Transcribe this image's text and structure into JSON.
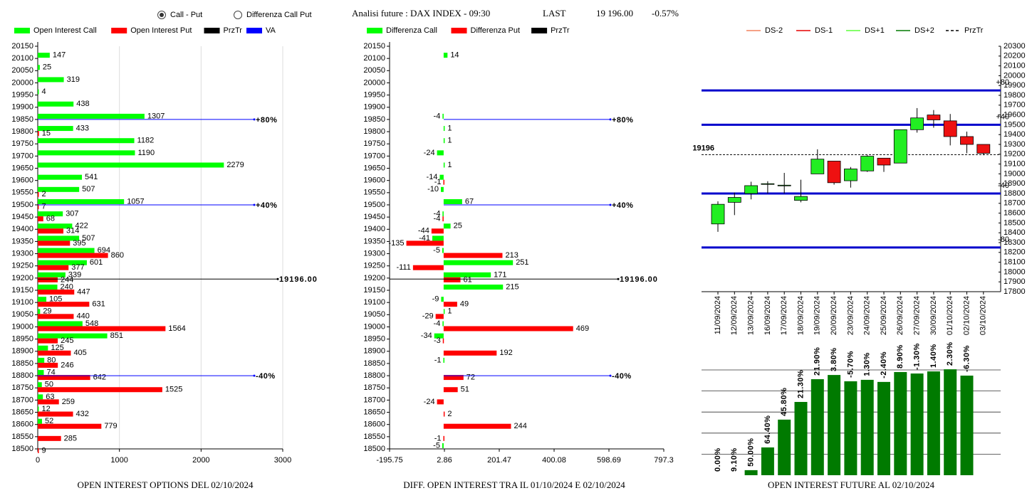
{
  "header": {
    "options": [
      {
        "label": "Call - Put",
        "selected": true
      },
      {
        "label": "Differenza Call Put",
        "selected": false
      }
    ],
    "title": "Analisi future : DAX INDEX - 09:30",
    "last_label": "LAST",
    "last": "19 196.00",
    "change": "-0.57%"
  },
  "chart_data": [
    {
      "type": "hbar",
      "title": "OPEN INTEREST OPTIONS DEL 02/10/2024",
      "categories": [
        20150,
        20100,
        20050,
        20000,
        19950,
        19900,
        19850,
        19800,
        19750,
        19700,
        19650,
        19600,
        19550,
        19500,
        19450,
        19400,
        19350,
        19300,
        19250,
        19200,
        19150,
        19100,
        19050,
        19000,
        18950,
        18900,
        18850,
        18800,
        18750,
        18700,
        18650,
        18600,
        18550,
        18500
      ],
      "series": [
        {
          "name": "Open Interest Call",
          "color": "#00ff00",
          "values": [
            null,
            147,
            25,
            319,
            4,
            438,
            1307,
            433,
            1182,
            1190,
            2279,
            541,
            507,
            1057,
            307,
            422,
            507,
            694,
            601,
            339,
            240,
            105,
            29,
            548,
            851,
            125,
            80,
            74,
            50,
            63,
            12,
            52,
            null,
            null
          ]
        },
        {
          "name": "Open Interest Put",
          "color": "#ff0000",
          "values": [
            null,
            null,
            null,
            null,
            null,
            null,
            null,
            15,
            null,
            null,
            null,
            null,
            2,
            7,
            68,
            314,
            395,
            860,
            377,
            244,
            447,
            631,
            440,
            1564,
            245,
            405,
            246,
            642,
            1525,
            259,
            432,
            779,
            285,
            9
          ]
        }
      ],
      "lines": [
        {
          "name": "PrzTr",
          "color": "#000000",
          "levels": [
            {
              "value": 19196,
              "label": "19196.00"
            }
          ]
        },
        {
          "name": "VA",
          "color": "#0000ff",
          "levels": [
            {
              "value": 19850,
              "label": "+80%"
            },
            {
              "value": 19500,
              "label": "+40%"
            },
            {
              "value": 18800,
              "label": "-40%"
            }
          ]
        }
      ],
      "xlim": [
        0,
        3000
      ],
      "xticks": [
        0,
        1000,
        2000,
        3000
      ],
      "grid": true
    },
    {
      "type": "hbar",
      "title": "DIFF. OPEN INTEREST TRA IL 01/10/2024 E 02/10/2024",
      "categories": [
        20150,
        20100,
        20050,
        20000,
        19950,
        19900,
        19850,
        19800,
        19750,
        19700,
        19650,
        19600,
        19550,
        19500,
        19450,
        19400,
        19350,
        19300,
        19250,
        19200,
        19150,
        19100,
        19050,
        19000,
        18950,
        18900,
        18850,
        18800,
        18750,
        18700,
        18650,
        18600,
        18550,
        18500
      ],
      "series": [
        {
          "name": "Differenza Call",
          "color": "#00ff00",
          "values": [
            null,
            14,
            null,
            null,
            null,
            null,
            -4,
            1,
            1,
            -24,
            1,
            -14,
            -10,
            67,
            -4,
            25,
            -41,
            -5,
            251,
            171,
            215,
            -9,
            1,
            -4,
            -34,
            null,
            -1,
            null,
            null,
            null,
            null,
            null,
            null,
            -5
          ]
        },
        {
          "name": "Differenza Put",
          "color": "#ff0000",
          "values": [
            null,
            null,
            null,
            null,
            null,
            null,
            null,
            null,
            null,
            null,
            null,
            -1,
            null,
            null,
            -4,
            -44,
            -135,
            213,
            -111,
            61,
            null,
            49,
            -29,
            469,
            -3,
            192,
            null,
            72,
            51,
            -24,
            2,
            244,
            -1,
            null
          ]
        }
      ],
      "lines": [
        {
          "name": "PrzTr",
          "color": "#000000",
          "levels": [
            {
              "value": 19196,
              "label": "19196.00"
            }
          ]
        },
        {
          "color": "#0000ff",
          "levels": [
            {
              "value": 19850,
              "label": "+80%"
            },
            {
              "value": 19500,
              "label": "+40%"
            },
            {
              "value": 18800,
              "label": "-40%"
            }
          ]
        }
      ],
      "xlim": [
        -195.75,
        797.3
      ],
      "xticks": [
        -195.75,
        2.86,
        201.47,
        400.08,
        598.69,
        797.3
      ],
      "grid": false
    },
    {
      "type": "candlestick",
      "x": [
        "11/09/2024",
        "12/09/2024",
        "13/09/2024",
        "16/09/2024",
        "17/09/2024",
        "18/09/2024",
        "19/09/2024",
        "20/09/2024",
        "23/09/2024",
        "24/09/2024",
        "25/09/2024",
        "26/09/2024",
        "27/09/2024",
        "30/09/2024",
        "01/10/2024",
        "02/10/2024",
        "03/10/2024"
      ],
      "open": [
        18490,
        18710,
        18800,
        18895,
        18880,
        18730,
        19000,
        19130,
        18930,
        19030,
        19160,
        19110,
        19450,
        19600,
        19540,
        19380,
        19300
      ],
      "high": [
        18720,
        18810,
        18920,
        18925,
        19010,
        18940,
        19250,
        19130,
        19070,
        19190,
        19160,
        19450,
        19670,
        19650,
        19610,
        19430,
        19300
      ],
      "low": [
        18410,
        18580,
        18740,
        18800,
        18800,
        18710,
        19000,
        18890,
        18860,
        19020,
        19020,
        19110,
        19420,
        19470,
        19290,
        19210,
        19190
      ],
      "close": [
        18690,
        18760,
        18880,
        18900,
        18885,
        18770,
        19150,
        18910,
        19050,
        19180,
        19090,
        19450,
        19570,
        19550,
        19380,
        19300,
        19210
      ],
      "up_color": "#22ee22",
      "down_color": "#ee1111",
      "lines": [
        {
          "name": "DS-2",
          "color": "#f4845f"
        },
        {
          "name": "DS-1",
          "color": "#e50000"
        },
        {
          "name": "DS+1",
          "color": "#5cff3a"
        },
        {
          "name": "DS+2",
          "color": "#007a00"
        },
        {
          "name": "PrzTr",
          "color": "#000000",
          "dash": true,
          "levels": [
            {
              "value": 19196,
              "label": "19196"
            }
          ]
        },
        {
          "color": "#0000cc",
          "levels": [
            {
              "value": 19850,
              "label": "+80"
            },
            {
              "value": 19500,
              "label": "+40"
            },
            {
              "value": 18800,
              "label": "-40"
            },
            {
              "value": 18250,
              "label": "-80"
            }
          ]
        }
      ],
      "ylim": [
        17800,
        20300
      ],
      "yticks": [
        17800,
        17900,
        18000,
        18100,
        18200,
        18300,
        18400,
        18500,
        18600,
        18700,
        18800,
        18900,
        19000,
        19100,
        19200,
        19300,
        19400,
        19500,
        19600,
        19700,
        19800,
        19900,
        20000,
        20100,
        20200,
        20300
      ]
    },
    {
      "type": "bar",
      "title": "OPEN INTEREST FUTURE AL 02/10/2024",
      "values": [
        0,
        0,
        0.24,
        1.32,
        2.64,
        3.48,
        4.56,
        4.76,
        4.46,
        4.53,
        4.43,
        4.9,
        4.83,
        4.93,
        5.03,
        4.73
      ],
      "labels": [
        "0.00%",
        "9.10%",
        "50.00%",
        "64.40%",
        "45.80%",
        "21.30%",
        "21.90%",
        "3.80%",
        "-5.70%",
        "1.30%",
        "-2.40%",
        "8.90%",
        "-1.30%",
        "1.40%",
        "2.30%",
        "-6.30%"
      ],
      "color": "#007a00",
      "ylim": [
        0,
        5
      ],
      "yticks": [
        1,
        2,
        3,
        4,
        5
      ],
      "grid": true
    }
  ]
}
